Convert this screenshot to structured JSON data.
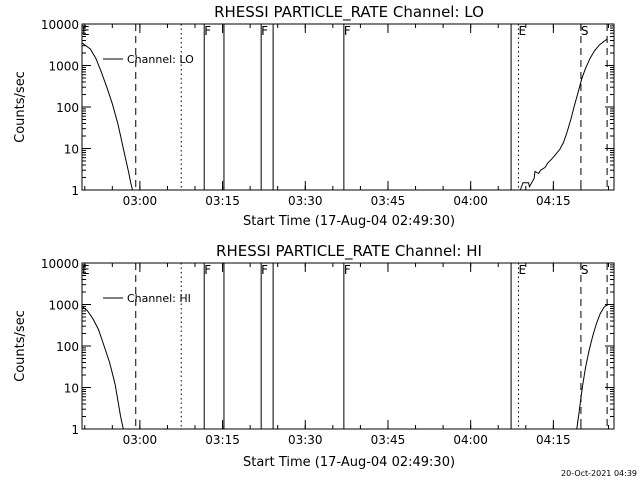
{
  "chart_data": [
    {
      "type": "line",
      "title": "RHESSI PARTICLE_RATE Channel: LO",
      "xlabel": "Start Time (17-Aug-04 02:49:30)",
      "ylabel": "Counts/sec",
      "yscale": "log",
      "xlim": [
        "02:49:30",
        "04:26:00"
      ],
      "ylim": [
        1,
        10000
      ],
      "xticks": [
        "03:00",
        "03:15",
        "03:30",
        "03:45",
        "04:00",
        "04:15"
      ],
      "yticks": [
        "1",
        "10",
        "100",
        "1000",
        "10000"
      ],
      "legend": {
        "placement": "top-left",
        "entries": [
          "Channel: LO"
        ]
      },
      "grid": false,
      "event_lines": [
        {
          "time": "02:49:30",
          "label": "E",
          "style": "solid"
        },
        {
          "time": "02:59:15",
          "label": "",
          "style": "dashed"
        },
        {
          "time": "03:07:30",
          "label": "",
          "style": "dotted"
        },
        {
          "time": "03:11:40",
          "label": "F",
          "style": "solid"
        },
        {
          "time": "03:15:15",
          "label": "",
          "style": "solid"
        },
        {
          "time": "03:22:00",
          "label": "F",
          "style": "solid"
        },
        {
          "time": "03:24:10",
          "label": "",
          "style": "solid"
        },
        {
          "time": "03:37:00",
          "label": "F",
          "style": "solid"
        },
        {
          "time": "04:07:20",
          "label": "",
          "style": "solid"
        },
        {
          "time": "04:08:40",
          "label": "E",
          "style": "dotted"
        },
        {
          "time": "04:20:00",
          "label": "S",
          "style": "dashed"
        },
        {
          "time": "04:24:45",
          "label": "",
          "style": "dashed"
        }
      ],
      "series": [
        {
          "name": "Channel: LO",
          "segments": [
            {
              "x": [
                "02:49:30",
                "02:51:00",
                "02:52:00",
                "02:53:00",
                "02:54:00",
                "02:55:00",
                "02:56:00",
                "02:56:30",
                "02:57:00",
                "02:57:30",
                "02:58:00",
                "02:58:20",
                "02:58:40"
              ],
              "y": [
                3500,
                2500,
                1500,
                700,
                300,
                120,
                40,
                20,
                10,
                5,
                2.5,
                1.5,
                1
              ]
            },
            {
              "x": [
                "04:09:00",
                "04:09:30",
                "04:10:30",
                "04:10:40",
                "04:11:30",
                "04:11:40",
                "04:12:20",
                "04:12:40",
                "04:13:30",
                "04:14:00",
                "04:14:40",
                "04:15:20",
                "04:16:10",
                "04:16:50",
                "04:17:30",
                "04:18:10",
                "04:18:50",
                "04:19:30",
                "04:20:10",
                "04:20:50",
                "04:21:40",
                "04:22:30",
                "04:23:20",
                "04:24:10",
                "04:24:45"
              ],
              "y": [
                1,
                1.5,
                1.5,
                1.2,
                1.9,
                2.8,
                2.5,
                3,
                3.5,
                4.5,
                5.5,
                7,
                9.5,
                14,
                25,
                50,
                110,
                230,
                480,
                850,
                1500,
                2300,
                3100,
                3800,
                4300
              ]
            }
          ]
        }
      ]
    },
    {
      "type": "line",
      "title": "RHESSI PARTICLE_RATE Channel: HI",
      "xlabel": "Start Time (17-Aug-04 02:49:30)",
      "ylabel": "Counts/sec",
      "yscale": "log",
      "xlim": [
        "02:49:30",
        "04:26:00"
      ],
      "ylim": [
        1,
        10000
      ],
      "xticks": [
        "03:00",
        "03:15",
        "03:30",
        "03:45",
        "04:00",
        "04:15"
      ],
      "yticks": [
        "1",
        "10",
        "100",
        "1000",
        "10000"
      ],
      "legend": {
        "placement": "top-left",
        "entries": [
          "Channel: HI"
        ]
      },
      "grid": false,
      "event_lines": [
        {
          "time": "02:49:30",
          "label": "E",
          "style": "solid"
        },
        {
          "time": "02:59:15",
          "label": "",
          "style": "dashed"
        },
        {
          "time": "03:07:30",
          "label": "",
          "style": "dotted"
        },
        {
          "time": "03:11:40",
          "label": "F",
          "style": "solid"
        },
        {
          "time": "03:15:15",
          "label": "",
          "style": "solid"
        },
        {
          "time": "03:22:00",
          "label": "F",
          "style": "solid"
        },
        {
          "time": "03:24:10",
          "label": "",
          "style": "solid"
        },
        {
          "time": "03:37:00",
          "label": "F",
          "style": "solid"
        },
        {
          "time": "04:07:20",
          "label": "",
          "style": "solid"
        },
        {
          "time": "04:08:40",
          "label": "E",
          "style": "dotted"
        },
        {
          "time": "04:20:00",
          "label": "S",
          "style": "dashed"
        },
        {
          "time": "04:24:45",
          "label": "",
          "style": "dashed"
        }
      ],
      "series": [
        {
          "name": "Channel: HI",
          "segments": [
            {
              "x": [
                "02:49:30",
                "02:50:30",
                "02:51:30",
                "02:52:30",
                "02:53:30",
                "02:54:30",
                "02:55:30",
                "02:56:00",
                "02:56:30",
                "02:57:00"
              ],
              "y": [
                900,
                700,
                450,
                250,
                100,
                40,
                12,
                5,
                2,
                1
              ]
            },
            {
              "x": [
                "04:19:15",
                "04:19:45",
                "04:20:15",
                "04:20:50",
                "04:21:30",
                "04:22:10",
                "04:22:50",
                "04:23:30",
                "04:24:10",
                "04:24:45"
              ],
              "y": [
                1,
                3,
                10,
                30,
                80,
                180,
                350,
                600,
                850,
                1000
              ]
            }
          ]
        }
      ]
    }
  ],
  "timestamp": "20-Oct-2021 04:39"
}
